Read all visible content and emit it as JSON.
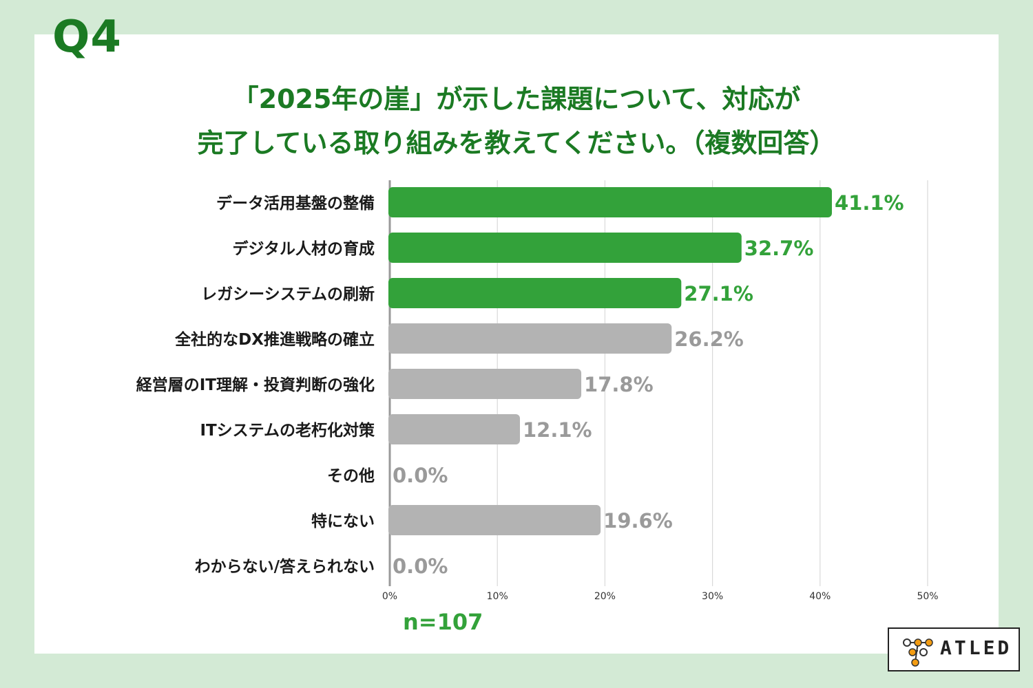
{
  "header": {
    "question_label": "Q4",
    "title_lines": [
      "「2025年の崖」が示した課題について、対応が",
      "完了している取り組みを教えてください。（複数回答）"
    ]
  },
  "chart_data": {
    "type": "bar",
    "orientation": "horizontal",
    "categories": [
      "データ活用基盤の整備",
      "デジタル人材の育成",
      "レガシーシステムの刷新",
      "全社的なDX推進戦略の確立",
      "経営層のIT理解・投資判断の強化",
      "ITシステムの老朽化対策",
      "その他",
      "特にない",
      "わからない/答えられない"
    ],
    "values": [
      41.1,
      32.7,
      27.1,
      26.2,
      17.8,
      12.1,
      0.0,
      19.6,
      0.0
    ],
    "value_labels": [
      "41.1%",
      "32.7%",
      "27.1%",
      "26.2%",
      "17.8%",
      "12.1%",
      "0.0%",
      "19.6%",
      "0.0%"
    ],
    "highlighted": [
      true,
      true,
      true,
      false,
      false,
      false,
      false,
      false,
      false
    ],
    "xlim": [
      0,
      50
    ],
    "x_ticks": [
      0,
      10,
      20,
      30,
      40,
      50
    ],
    "x_tick_labels": [
      "0%",
      "10%",
      "20%",
      "30%",
      "40%",
      "50%"
    ],
    "grid": true,
    "colors": {
      "highlight": "#33a23a",
      "other": "#b3b3b3",
      "highlight_label": "#33a23a",
      "other_label": "#9a9a9a"
    }
  },
  "footer": {
    "sample_size": "n=107"
  },
  "brand": {
    "logo_text": "ATLED",
    "logo_mark_colors": [
      "#f39c12",
      "#888888"
    ]
  }
}
